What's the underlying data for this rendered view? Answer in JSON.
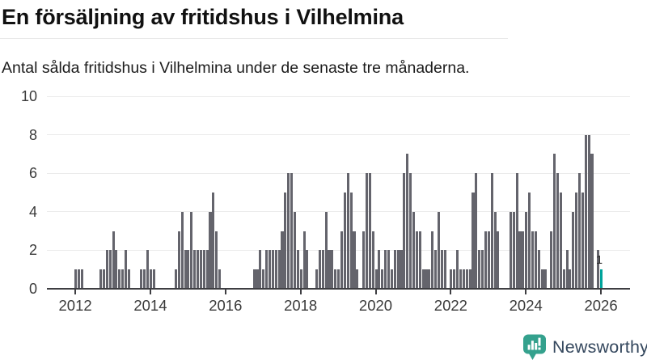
{
  "header": {
    "title": "En försäljning av fritidshus i Vilhelmina",
    "subtitle": "Antal sålda fritidshus i Vilhelmina under de senaste tre månaderna."
  },
  "branding": {
    "name": "Newsworthy",
    "icon": "newsworthy-speech-bubble-chart-icon",
    "icon_color": "#34a18d",
    "text_color": "#35485e"
  },
  "chart_data": {
    "type": "bar",
    "title": "En försäljning av fritidshus i Vilhelmina",
    "subtitle": "Antal sålda fritidshus i Vilhelmina under de senaste tre månaderna.",
    "start_month": "2011-06",
    "values_by_year": {
      "2011": [
        0,
        0,
        0,
        0,
        0,
        0,
        0
      ],
      "2012": [
        1,
        1,
        1,
        0,
        0,
        0,
        0,
        0,
        1,
        1,
        2,
        2
      ],
      "2013": [
        3,
        2,
        1,
        1,
        2,
        1,
        0,
        0,
        0,
        1,
        1,
        2
      ],
      "2014": [
        1,
        1,
        0,
        0,
        0,
        0,
        0,
        0,
        1,
        3,
        4,
        2
      ],
      "2015": [
        2,
        4,
        2,
        2,
        2,
        2,
        2,
        4,
        5,
        3,
        1,
        0
      ],
      "2016": [
        0,
        0,
        0,
        0,
        0,
        0,
        0,
        0,
        0,
        1,
        1,
        2
      ],
      "2017": [
        1,
        2,
        2,
        2,
        2,
        2,
        3,
        5,
        6,
        6,
        4,
        2
      ],
      "2018": [
        1,
        3,
        2,
        0,
        0,
        1,
        2,
        2,
        4,
        2,
        2,
        1
      ],
      "2019": [
        1,
        3,
        5,
        6,
        5,
        3,
        1,
        0,
        3,
        6,
        6,
        3
      ],
      "2020": [
        1,
        2,
        1,
        2,
        2,
        1,
        2,
        2,
        2,
        6,
        7,
        6
      ],
      "2021": [
        4,
        3,
        3,
        1,
        1,
        1,
        3,
        2,
        4,
        2,
        2,
        0
      ],
      "2022": [
        1,
        1,
        2,
        1,
        1,
        1,
        1,
        5,
        6,
        2,
        2,
        3
      ],
      "2023": [
        3,
        6,
        4,
        3,
        0,
        0,
        0,
        4,
        4,
        6,
        3,
        3
      ],
      "2024": [
        4,
        5,
        3,
        3,
        2,
        1,
        1,
        0,
        3,
        7,
        6,
        5
      ],
      "2025": [
        1,
        2,
        1,
        4,
        5,
        6,
        5,
        8,
        8,
        7,
        0,
        2
      ],
      "2026": [
        1
      ]
    },
    "highlight_last": {
      "month": "2026-01",
      "value": 1,
      "label": "1",
      "color": "#00a39b"
    },
    "bar_color": "#64646c",
    "y_axis": {
      "ticks": [
        0,
        2,
        4,
        6,
        8,
        10
      ],
      "range": [
        0,
        10
      ]
    },
    "x_axis": {
      "tick_years": [
        "2012",
        "2014",
        "2016",
        "2018",
        "2020",
        "2022",
        "2024",
        "2026"
      ]
    },
    "grid": true,
    "legend": false
  }
}
